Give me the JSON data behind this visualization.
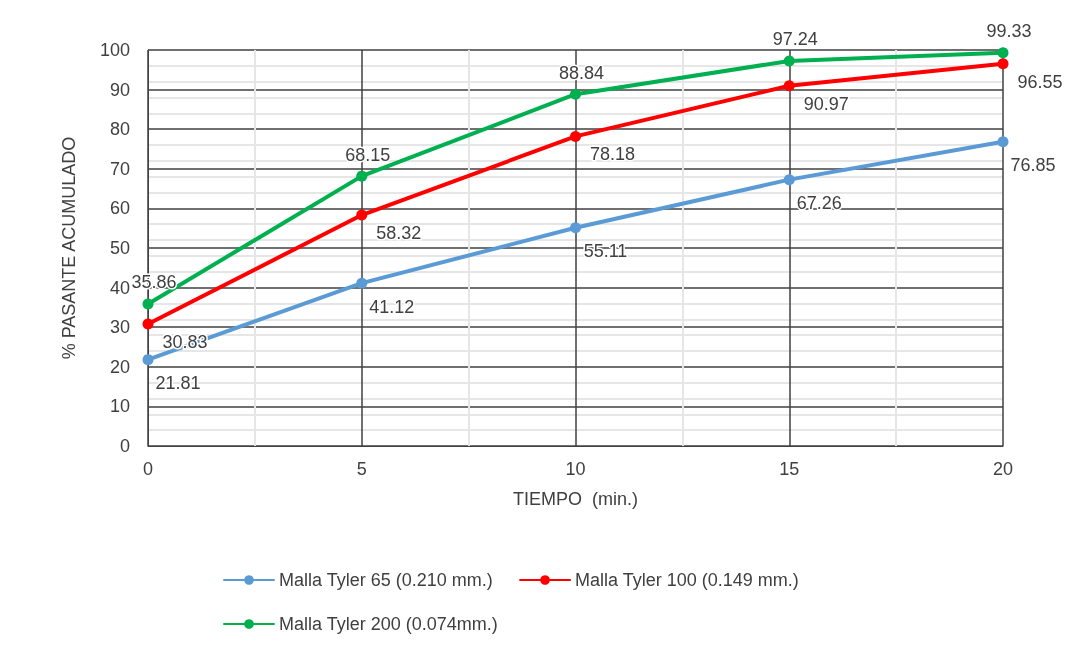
{
  "chart_data": {
    "type": "line",
    "xlabel": "TIEMPO  (min.)",
    "ylabel": "% PASANTE ACUMULADO",
    "x": [
      0,
      5,
      10,
      15,
      20
    ],
    "xlim": [
      0,
      20
    ],
    "xticks": [
      0,
      5,
      10,
      15,
      20
    ],
    "ylim": [
      0,
      100
    ],
    "yticks": [
      0,
      10,
      20,
      30,
      40,
      50,
      60,
      70,
      80,
      90,
      100
    ],
    "grid": true,
    "legend": "bottom",
    "marker": "circle",
    "line_style": "solid",
    "data_labels": true,
    "series": [
      {
        "name": "Malla Tyler 65 (0.210 mm.)",
        "color": "#5b9bd5",
        "values": [
          21.81,
          41.12,
          55.11,
          67.26,
          76.85
        ]
      },
      {
        "name": "Malla Tyler 100 (0.149 mm.)",
        "color": "#ff0000",
        "values": [
          30.83,
          58.32,
          78.18,
          90.97,
          96.55
        ]
      },
      {
        "name": "Malla Tyler 200 (0.074mm.)",
        "color": "#00b050",
        "values": [
          35.86,
          68.15,
          88.84,
          97.24,
          99.33
        ]
      }
    ]
  }
}
